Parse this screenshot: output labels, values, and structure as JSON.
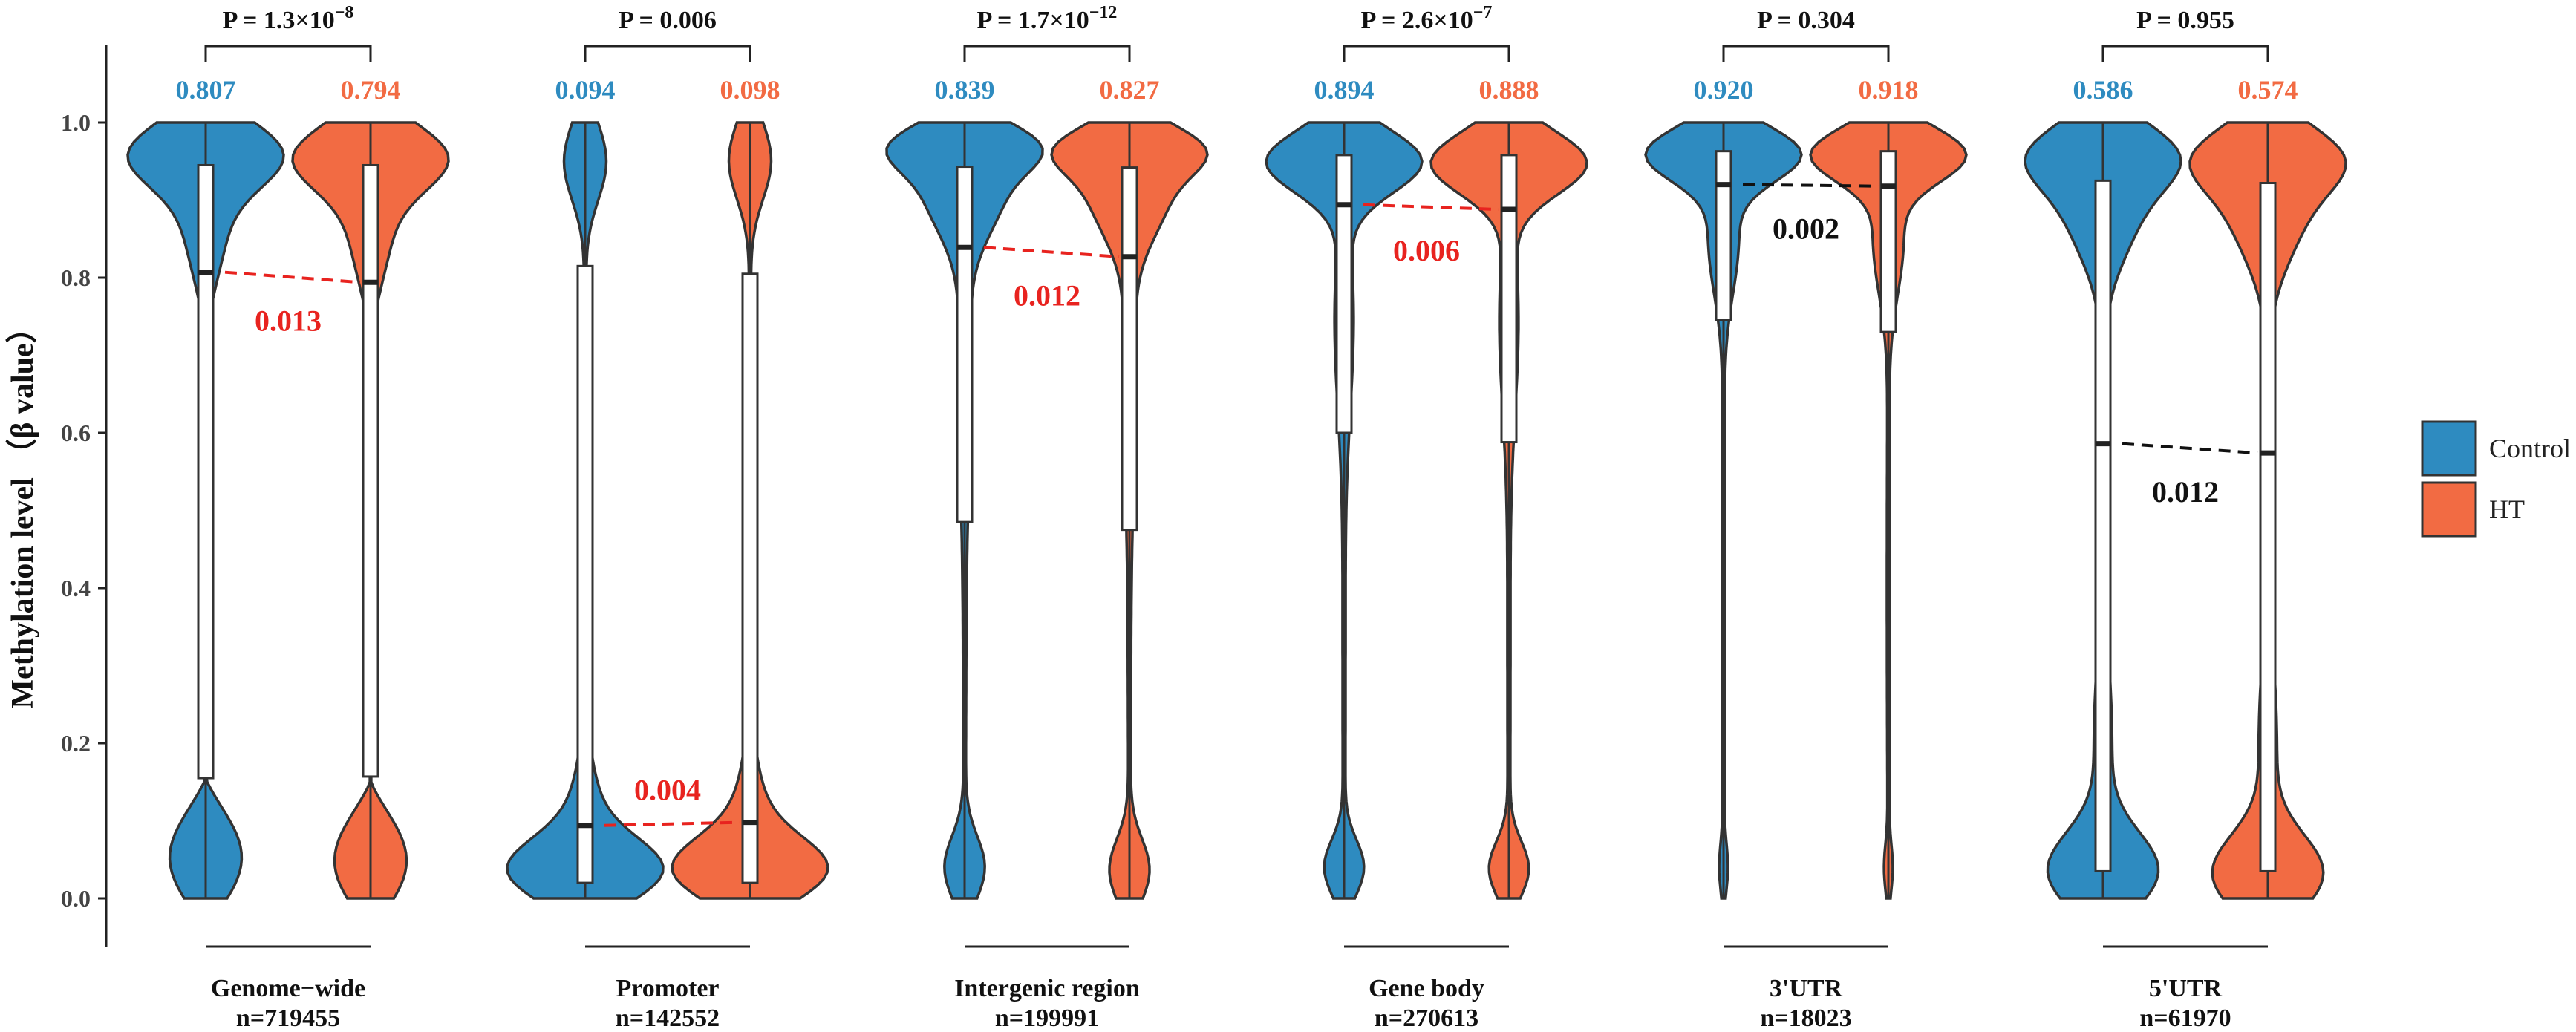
{
  "chart_data": {
    "type": "violin",
    "ylabel": "Methylation level （β value）",
    "ylim": [
      0,
      1
    ],
    "yticks": [
      "0.0",
      "0.2",
      "0.4",
      "0.6",
      "0.8",
      "1.0"
    ],
    "legend": {
      "position": "right",
      "entries": [
        {
          "name": "Control",
          "color": "#2E8BC0"
        },
        {
          "name": "HT",
          "color": "#F26B43"
        }
      ]
    },
    "groups": [
      {
        "name": "Genome−wide",
        "n_label": "n=719455",
        "p_label": "P = 1.3×10",
        "p_exp": "−8",
        "diff_label": "0.013",
        "diff_color": "#e8231f",
        "control": {
          "median": 0.807,
          "median_label": "0.807",
          "q1": 0.155,
          "q3": 0.945
        },
        "ht": {
          "median": 0.794,
          "median_label": "0.794",
          "q1": 0.157,
          "q3": 0.945
        }
      },
      {
        "name": "Promoter",
        "n_label": "n=142552",
        "p_label": "P = 0.006",
        "p_exp": "",
        "diff_label": "0.004",
        "diff_color": "#e8231f",
        "control": {
          "median": 0.094,
          "median_label": "0.094",
          "q1": 0.02,
          "q3": 0.815
        },
        "ht": {
          "median": 0.098,
          "median_label": "0.098",
          "q1": 0.02,
          "q3": 0.805
        }
      },
      {
        "name": "Intergenic region",
        "n_label": "n=199991",
        "p_label": "P = 1.7×10",
        "p_exp": "−12",
        "diff_label": "0.012",
        "diff_color": "#e8231f",
        "control": {
          "median": 0.839,
          "median_label": "0.839",
          "q1": 0.485,
          "q3": 0.943
        },
        "ht": {
          "median": 0.827,
          "median_label": "0.827",
          "q1": 0.475,
          "q3": 0.942
        }
      },
      {
        "name": "Gene body",
        "n_label": "n=270613",
        "p_label": "P = 2.6×10",
        "p_exp": "−7",
        "diff_label": "0.006",
        "diff_color": "#e8231f",
        "control": {
          "median": 0.894,
          "median_label": "0.894",
          "q1": 0.6,
          "q3": 0.958
        },
        "ht": {
          "median": 0.888,
          "median_label": "0.888",
          "q1": 0.588,
          "q3": 0.958
        }
      },
      {
        "name": "3'UTR",
        "n_label": "n=18023",
        "p_label": "P = 0.304",
        "p_exp": "",
        "diff_label": "0.002",
        "diff_color": "#111111",
        "control": {
          "median": 0.92,
          "median_label": "0.920",
          "q1": 0.745,
          "q3": 0.963
        },
        "ht": {
          "median": 0.918,
          "median_label": "0.918",
          "q1": 0.73,
          "q3": 0.963
        }
      },
      {
        "name": "5'UTR",
        "n_label": "n=61970",
        "p_label": "P = 0.955",
        "p_exp": "",
        "diff_label": "0.012",
        "diff_color": "#111111",
        "control": {
          "median": 0.586,
          "median_label": "0.586",
          "q1": 0.035,
          "q3": 0.925
        },
        "ht": {
          "median": 0.574,
          "median_label": "0.574",
          "q1": 0.035,
          "q3": 0.922
        }
      }
    ]
  }
}
